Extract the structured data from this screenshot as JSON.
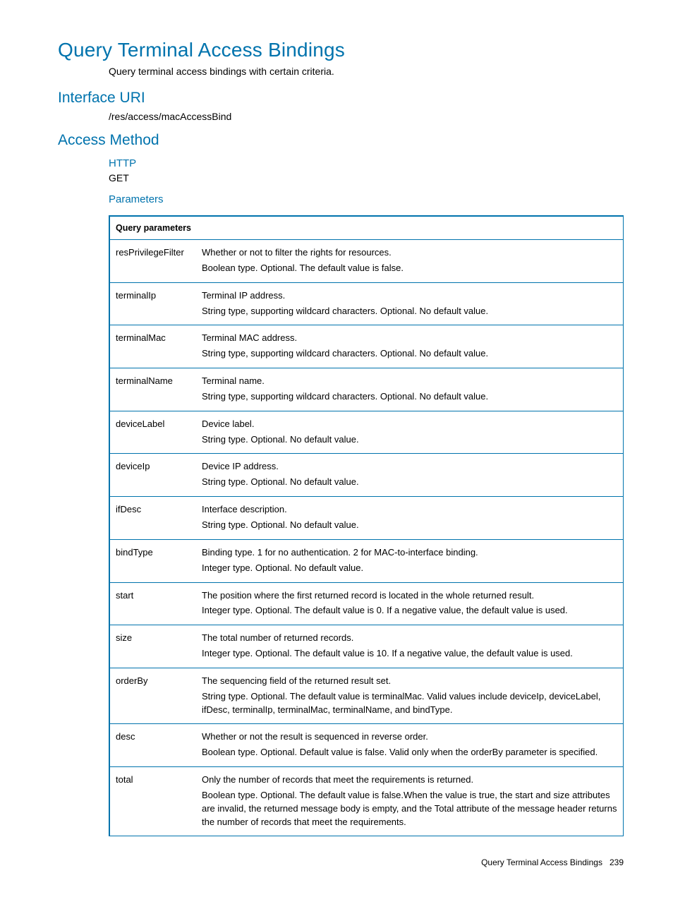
{
  "title": "Query Terminal Access Bindings",
  "intro": "Query terminal access bindings with certain criteria.",
  "sections": {
    "interfaceUri": {
      "heading": "Interface URI",
      "value": "/res/access/macAccessBind"
    },
    "accessMethod": {
      "heading": "Access Method"
    },
    "http": {
      "heading": "HTTP",
      "method": "GET"
    },
    "parameters": {
      "heading": "Parameters"
    }
  },
  "table": {
    "header": "Query parameters",
    "rows": [
      {
        "name": "resPrivilegeFilter",
        "l1": "Whether or not to filter the rights for resources.",
        "l2": "Boolean type. Optional. The default value is false."
      },
      {
        "name": "terminalIp",
        "l1": "Terminal IP address.",
        "l2": "String type, supporting wildcard characters. Optional. No default value."
      },
      {
        "name": "terminalMac",
        "l1": "Terminal MAC address.",
        "l2": "String type, supporting wildcard characters. Optional. No default value."
      },
      {
        "name": "terminalName",
        "l1": "Terminal name.",
        "l2": "String type, supporting wildcard characters. Optional. No default value."
      },
      {
        "name": "deviceLabel",
        "l1": "Device label.",
        "l2": "String type. Optional. No default value."
      },
      {
        "name": "deviceIp",
        "l1": "Device IP address.",
        "l2": "String type. Optional. No default value."
      },
      {
        "name": "ifDesc",
        "l1": "Interface description.",
        "l2": "String type. Optional. No default value."
      },
      {
        "name": "bindType",
        "l1": "Binding type. 1 for no authentication. 2 for MAC-to-interface binding.",
        "l2": "Integer type. Optional. No default value."
      },
      {
        "name": "start",
        "l1": "The position where the first returned record is located in the whole returned result.",
        "l2": "Integer type. Optional. The default value is 0. If a negative value, the default value is used."
      },
      {
        "name": "size",
        "l1": "The total number of returned records.",
        "l2": "Integer type. Optional. The default value is 10. If a negative value, the default value is used."
      },
      {
        "name": "orderBy",
        "l1": "The sequencing field of the returned result set.",
        "l2": "String type. Optional. The default value is terminalMac. Valid values include deviceIp, deviceLabel, ifDesc, terminalIp, terminalMac, terminalName, and bindType."
      },
      {
        "name": "desc",
        "l1": "Whether or not the result is sequenced in reverse order.",
        "l2": "Boolean type. Optional. Default value is false. Valid only when the orderBy parameter is specified."
      },
      {
        "name": "total",
        "l1": "Only the number of records that meet the requirements is returned.",
        "l2": "Boolean type. Optional. The default value is false.When the value is true, the start and size attributes are invalid, the returned message body is empty, and the Total attribute of the message header returns the number of records that meet the requirements."
      }
    ]
  },
  "footer": {
    "text": "Query Terminal Access Bindings",
    "page": "239"
  }
}
